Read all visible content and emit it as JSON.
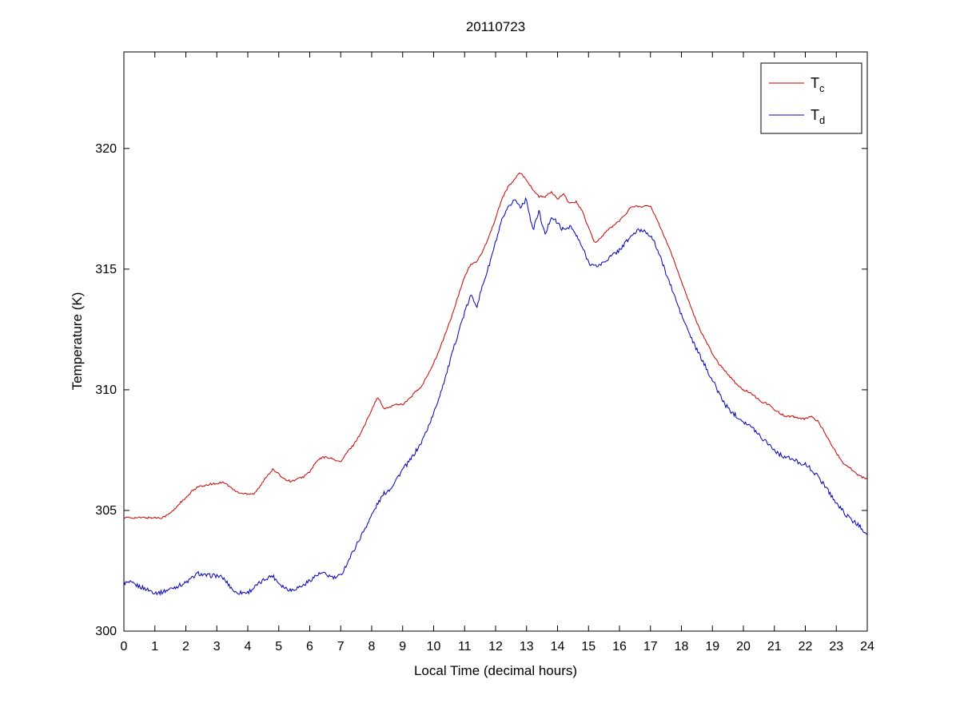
{
  "page": {
    "background": "#ffffff",
    "frame_color": "#000000"
  },
  "chart_data": {
    "type": "line",
    "title": "20110723",
    "xlabel": "Local Time (decimal hours)",
    "ylabel": "Temperature (K)",
    "xlim": [
      0,
      24
    ],
    "ylim": [
      300,
      324
    ],
    "x_ticks": [
      0,
      1,
      2,
      3,
      4,
      5,
      6,
      7,
      8,
      9,
      10,
      11,
      12,
      13,
      14,
      15,
      16,
      17,
      18,
      19,
      20,
      21,
      22,
      23,
      24
    ],
    "y_ticks": [
      300,
      305,
      310,
      315,
      320
    ],
    "grid": false,
    "x_step": 0.2,
    "legend": {
      "position": "top-right",
      "entries": [
        {
          "label_base": "T",
          "label_sub": "c",
          "color": "#cc0000"
        },
        {
          "label_base": "T",
          "label_sub": "d",
          "color": "#0000bb"
        }
      ]
    },
    "series": [
      {
        "name": "Tc",
        "color": "#cc0000",
        "noise_amplitude": 0.04,
        "values": [
          304.7,
          304.7,
          304.7,
          304.7,
          304.7,
          304.7,
          304.7,
          304.8,
          305.0,
          305.3,
          305.5,
          305.8,
          306.0,
          306.0,
          306.1,
          306.1,
          306.2,
          306.0,
          305.8,
          305.7,
          305.7,
          305.7,
          306.0,
          306.4,
          306.7,
          306.5,
          306.3,
          306.2,
          306.3,
          306.4,
          306.6,
          307.0,
          307.2,
          307.2,
          307.1,
          307.0,
          307.4,
          307.7,
          308.1,
          308.6,
          309.2,
          309.7,
          309.2,
          309.3,
          309.4,
          309.4,
          309.6,
          309.9,
          310.1,
          310.6,
          311.1,
          311.7,
          312.4,
          313.1,
          313.9,
          314.7,
          315.2,
          315.3,
          315.8,
          316.4,
          317.1,
          317.9,
          318.4,
          318.7,
          319.0,
          318.7,
          318.3,
          318.0,
          318.0,
          318.2,
          317.9,
          318.1,
          317.7,
          317.8,
          317.4,
          316.7,
          316.1,
          316.3,
          316.6,
          316.8,
          317.0,
          317.3,
          317.6,
          317.6,
          317.6,
          317.6,
          317.1,
          316.5,
          315.9,
          315.2,
          314.5,
          313.8,
          313.1,
          312.5,
          312.0,
          311.5,
          311.1,
          310.8,
          310.5,
          310.2,
          310.0,
          309.9,
          309.7,
          309.5,
          309.4,
          309.2,
          309.0,
          308.9,
          308.9,
          308.8,
          308.8,
          308.9,
          308.7,
          308.3,
          307.8,
          307.4,
          307.0,
          306.8,
          306.6,
          306.4,
          306.3
        ]
      },
      {
        "name": "Td",
        "color": "#0000bb",
        "noise_amplitude": 0.09,
        "values": [
          302.0,
          302.0,
          301.9,
          301.8,
          301.7,
          301.6,
          301.6,
          301.7,
          301.8,
          301.9,
          302.0,
          302.2,
          302.4,
          302.3,
          302.3,
          302.3,
          302.2,
          301.9,
          301.6,
          301.6,
          301.6,
          301.8,
          302.0,
          302.2,
          302.3,
          302.0,
          301.8,
          301.7,
          301.8,
          301.9,
          302.1,
          302.3,
          302.4,
          302.3,
          302.2,
          302.3,
          302.8,
          303.3,
          303.8,
          304.3,
          304.8,
          305.3,
          305.7,
          305.9,
          306.3,
          306.7,
          307.0,
          307.4,
          307.8,
          308.4,
          309.0,
          309.8,
          310.6,
          311.5,
          312.4,
          313.2,
          313.9,
          313.5,
          314.4,
          315.2,
          316.1,
          317.0,
          317.5,
          317.9,
          317.6,
          317.9,
          316.6,
          317.4,
          316.4,
          317.2,
          316.9,
          316.6,
          316.8,
          316.4,
          315.9,
          315.3,
          315.1,
          315.2,
          315.4,
          315.6,
          315.8,
          316.1,
          316.4,
          316.6,
          316.6,
          316.4,
          315.9,
          315.2,
          314.5,
          313.8,
          313.1,
          312.5,
          311.9,
          311.4,
          310.9,
          310.4,
          309.9,
          309.4,
          309.1,
          308.9,
          308.7,
          308.5,
          308.3,
          308.0,
          307.8,
          307.5,
          307.3,
          307.2,
          307.1,
          307.0,
          306.9,
          306.7,
          306.4,
          306.1,
          305.7,
          305.3,
          305.0,
          304.7,
          304.5,
          304.3,
          304.0
        ]
      }
    ]
  }
}
